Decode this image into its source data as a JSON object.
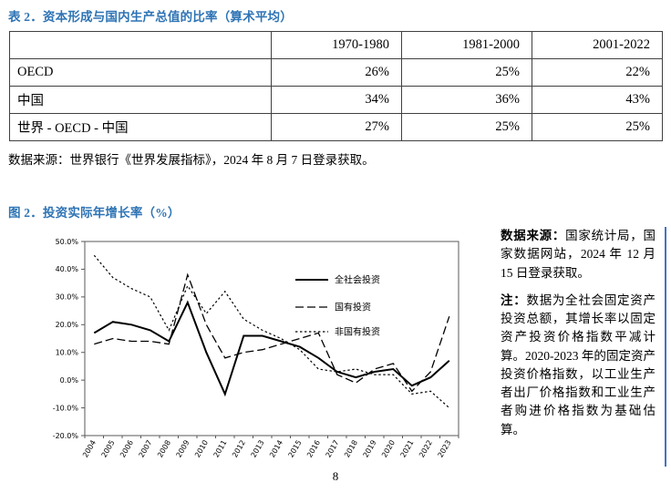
{
  "colors": {
    "heading_blue": "#2E74B5",
    "accent_bar": "#4472C4",
    "line_color": "#000000",
    "table_border": "#404040"
  },
  "table_section": {
    "title": "表 2．资本形成与国内生产总值的比率（算术平均）",
    "columns": [
      "1970-1980",
      "1981-2000",
      "2001-2022"
    ],
    "rows": [
      {
        "label": "OECD",
        "values": [
          "26%",
          "25%",
          "22%"
        ]
      },
      {
        "label": "中国",
        "values": [
          "34%",
          "36%",
          "43%"
        ]
      },
      {
        "label": "世界 - OECD - 中国",
        "values": [
          "27%",
          "25%",
          "25%"
        ]
      }
    ],
    "source": "数据来源：世界银行《世界发展指标》，2024 年 8 月 7 日登录获取。"
  },
  "figure_section": {
    "title": "图 2．投资实际年增长率（%）",
    "source_label": "数据来源：",
    "source_text": "国家统计局，国家数据网站，2024 年 12 月 15 日登录获取。",
    "note_label": "注：",
    "note_text": "数据为全社会固定资产投资总额，其增长率以固定资产投资价格指数平减计算。2020-2023 年的固定资产投资价格指数，以工业生产者出厂价格指数和工业生产者购进价格指数为基础估算。"
  },
  "page": {
    "number": "8"
  },
  "chart_data": {
    "type": "line",
    "title": "投资实际年增长率（%）",
    "x": [
      "2004",
      "2005",
      "2006",
      "2007",
      "2008",
      "2009",
      "2010",
      "2011",
      "2012",
      "2013",
      "2014",
      "2015",
      "2016",
      "2017",
      "2018",
      "2019",
      "2020",
      "2021",
      "2022",
      "2023"
    ],
    "ylim": [
      -20,
      50
    ],
    "y_tick_step": 10,
    "y_tick_suffix": "%",
    "grid": false,
    "legend_position": "inside-top-right",
    "series": [
      {
        "name": "全社会投资",
        "style": "solid",
        "values": [
          17,
          21,
          20,
          18,
          14,
          28,
          10,
          -5,
          16,
          16,
          14,
          12,
          8,
          3,
          1,
          3,
          4,
          -2,
          1,
          7
        ]
      },
      {
        "name": "国有投资",
        "style": "dashed",
        "values": [
          13,
          15,
          14,
          14,
          13,
          38,
          20,
          8,
          10,
          11,
          13,
          15,
          17,
          2,
          -1,
          4,
          6,
          -4,
          3,
          23
        ]
      },
      {
        "name": "非国有投资",
        "style": "dotted",
        "values": [
          45,
          37,
          33,
          30,
          18,
          34,
          24,
          32,
          22,
          18,
          15,
          11,
          4,
          3,
          4,
          2,
          2,
          -5,
          -4,
          -10
        ]
      }
    ]
  }
}
